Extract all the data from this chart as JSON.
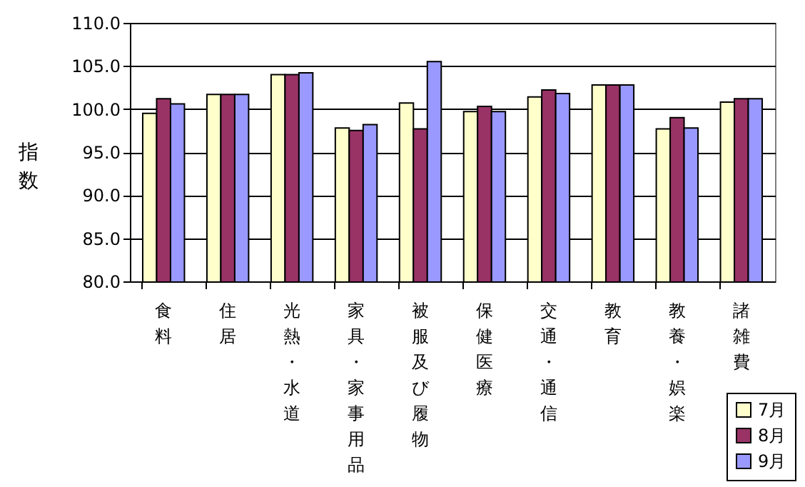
{
  "chart_data": {
    "type": "bar",
    "ylabel": "指数",
    "categories": [
      "食料",
      "住居",
      "光熱・水道",
      "家具・家事用品",
      "被服及び履物",
      "保健医療",
      "交通・通信",
      "教育",
      "教養・娯楽",
      "諸雑費"
    ],
    "series": [
      {
        "name": "7月",
        "color": "#ffffcc",
        "values": [
          99.5,
          101.7,
          104.0,
          97.8,
          100.7,
          99.7,
          101.4,
          102.8,
          97.7,
          100.8
        ]
      },
      {
        "name": "8月",
        "color": "#993366",
        "values": [
          101.2,
          101.7,
          104.0,
          97.5,
          97.7,
          100.3,
          102.2,
          102.8,
          99.0,
          101.2
        ]
      },
      {
        "name": "9月",
        "color": "#9999ff",
        "values": [
          100.6,
          101.7,
          104.2,
          98.2,
          105.5,
          99.7,
          101.8,
          102.8,
          97.8,
          101.2
        ]
      }
    ],
    "ylim": [
      80,
      110
    ],
    "yticks": [
      {
        "value": 80,
        "label": "80.0"
      },
      {
        "value": 85,
        "label": "85.0"
      },
      {
        "value": 90,
        "label": "90.0"
      },
      {
        "value": 95,
        "label": "95.0"
      },
      {
        "value": 100,
        "label": "100.0"
      },
      {
        "value": 105,
        "label": "105.0"
      },
      {
        "value": 110,
        "label": "110.0"
      }
    ],
    "grid": "y",
    "legend": "bottom right"
  }
}
